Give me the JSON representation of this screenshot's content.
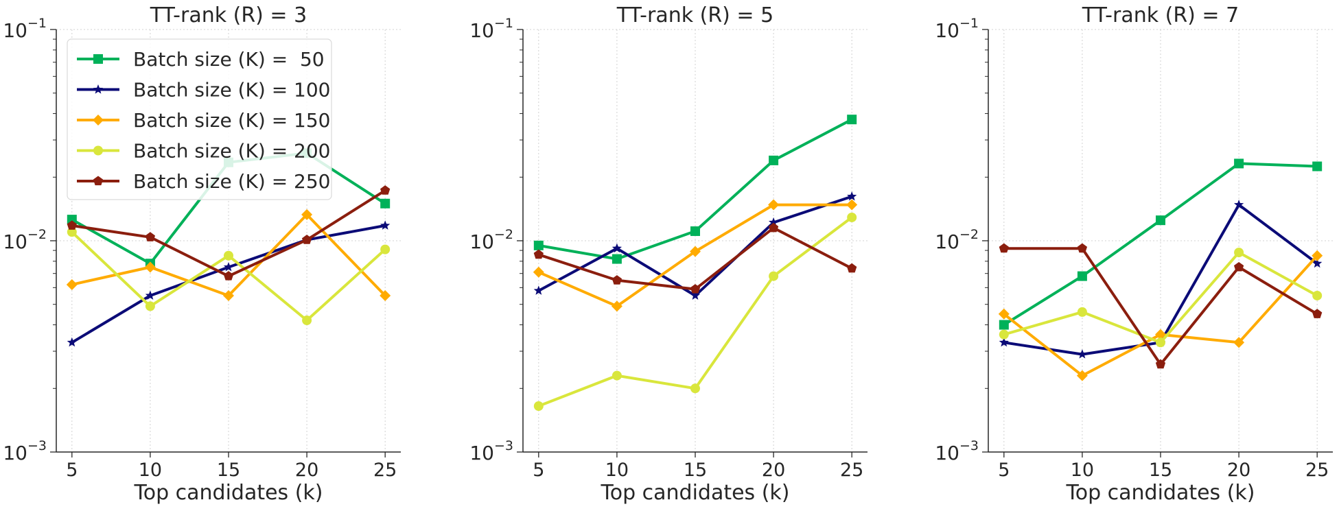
{
  "chart_data": [
    {
      "type": "line",
      "title": "TT-rank (R) = 3",
      "xlabel": "Top candidates (k)",
      "ylabel": "",
      "yscale": "log",
      "ylim": [
        0.001,
        0.1
      ],
      "x": [
        5,
        10,
        15,
        20,
        25
      ],
      "xticks": [
        "5",
        "10",
        "15",
        "20",
        "25"
      ],
      "ytick_labels": [
        {
          "base": "10",
          "exp": "−1"
        },
        {
          "base": "10",
          "exp": "−2"
        },
        {
          "base": "10",
          "exp": "−3"
        }
      ],
      "grid": true,
      "legend": "upper-left",
      "series": [
        {
          "name": "Batch size (K) =  50",
          "color": "#00b159",
          "marker": "square",
          "values": [
            0.0126,
            0.0078,
            0.0235,
            0.026,
            0.015
          ]
        },
        {
          "name": "Batch size (K) = 100",
          "color": "#0b0b77",
          "marker": "star",
          "values": [
            0.0033,
            0.0055,
            0.0075,
            0.0101,
            0.0118
          ]
        },
        {
          "name": "Batch size (K) = 150",
          "color": "#ffab00",
          "marker": "diamond",
          "values": [
            0.0062,
            0.0075,
            0.0055,
            0.0133,
            0.0055
          ]
        },
        {
          "name": "Batch size (K) = 200",
          "color": "#d9e63c",
          "marker": "circle",
          "values": [
            0.011,
            0.0049,
            0.0085,
            0.0042,
            0.0091
          ]
        },
        {
          "name": "Batch size (K) = 250",
          "color": "#8b1e0e",
          "marker": "pentagon",
          "values": [
            0.0118,
            0.0104,
            0.0068,
            0.0101,
            0.0173
          ]
        }
      ]
    },
    {
      "type": "line",
      "title": "TT-rank (R) = 5",
      "xlabel": "Top candidates (k)",
      "ylabel": "",
      "yscale": "log",
      "ylim": [
        0.001,
        0.1
      ],
      "x": [
        5,
        10,
        15,
        20,
        25
      ],
      "xticks": [
        "5",
        "10",
        "15",
        "20",
        "25"
      ],
      "ytick_labels": [
        {
          "base": "10",
          "exp": "−1"
        },
        {
          "base": "10",
          "exp": "−2"
        },
        {
          "base": "10",
          "exp": "−3"
        }
      ],
      "grid": true,
      "series": [
        {
          "color": "#00b159",
          "marker": "square",
          "values": [
            0.0095,
            0.0082,
            0.0111,
            0.024,
            0.0375
          ]
        },
        {
          "color": "#0b0b77",
          "marker": "star",
          "values": [
            0.0058,
            0.0092,
            0.0055,
            0.0122,
            0.0162
          ]
        },
        {
          "color": "#ffab00",
          "marker": "diamond",
          "values": [
            0.0071,
            0.0049,
            0.0089,
            0.0148,
            0.0148
          ]
        },
        {
          "color": "#d9e63c",
          "marker": "circle",
          "values": [
            0.00165,
            0.0023,
            0.002,
            0.0068,
            0.0129
          ]
        },
        {
          "color": "#8b1e0e",
          "marker": "pentagon",
          "values": [
            0.0086,
            0.0065,
            0.0059,
            0.0115,
            0.0074
          ]
        }
      ]
    },
    {
      "type": "line",
      "title": "TT-rank (R) = 7",
      "xlabel": "Top candidates (k)",
      "ylabel": "",
      "yscale": "log",
      "ylim": [
        0.001,
        0.1
      ],
      "x": [
        5,
        10,
        15,
        20,
        25
      ],
      "xticks": [
        "5",
        "10",
        "15",
        "20",
        "25"
      ],
      "ytick_labels": [
        {
          "base": "10",
          "exp": "−1"
        },
        {
          "base": "10",
          "exp": "−2"
        },
        {
          "base": "10",
          "exp": "−3"
        }
      ],
      "grid": true,
      "series": [
        {
          "color": "#00b159",
          "marker": "square",
          "values": [
            0.004,
            0.0068,
            0.0125,
            0.0232,
            0.0225
          ]
        },
        {
          "color": "#0b0b77",
          "marker": "star",
          "values": [
            0.0033,
            0.0029,
            0.0033,
            0.0148,
            0.0078
          ]
        },
        {
          "color": "#ffab00",
          "marker": "diamond",
          "values": [
            0.0045,
            0.0023,
            0.0036,
            0.0033,
            0.0085
          ]
        },
        {
          "color": "#d9e63c",
          "marker": "circle",
          "values": [
            0.0036,
            0.0046,
            0.0033,
            0.0088,
            0.0055
          ]
        },
        {
          "color": "#8b1e0e",
          "marker": "pentagon",
          "values": [
            0.0092,
            0.0092,
            0.0026,
            0.0075,
            0.0045
          ]
        }
      ]
    }
  ]
}
